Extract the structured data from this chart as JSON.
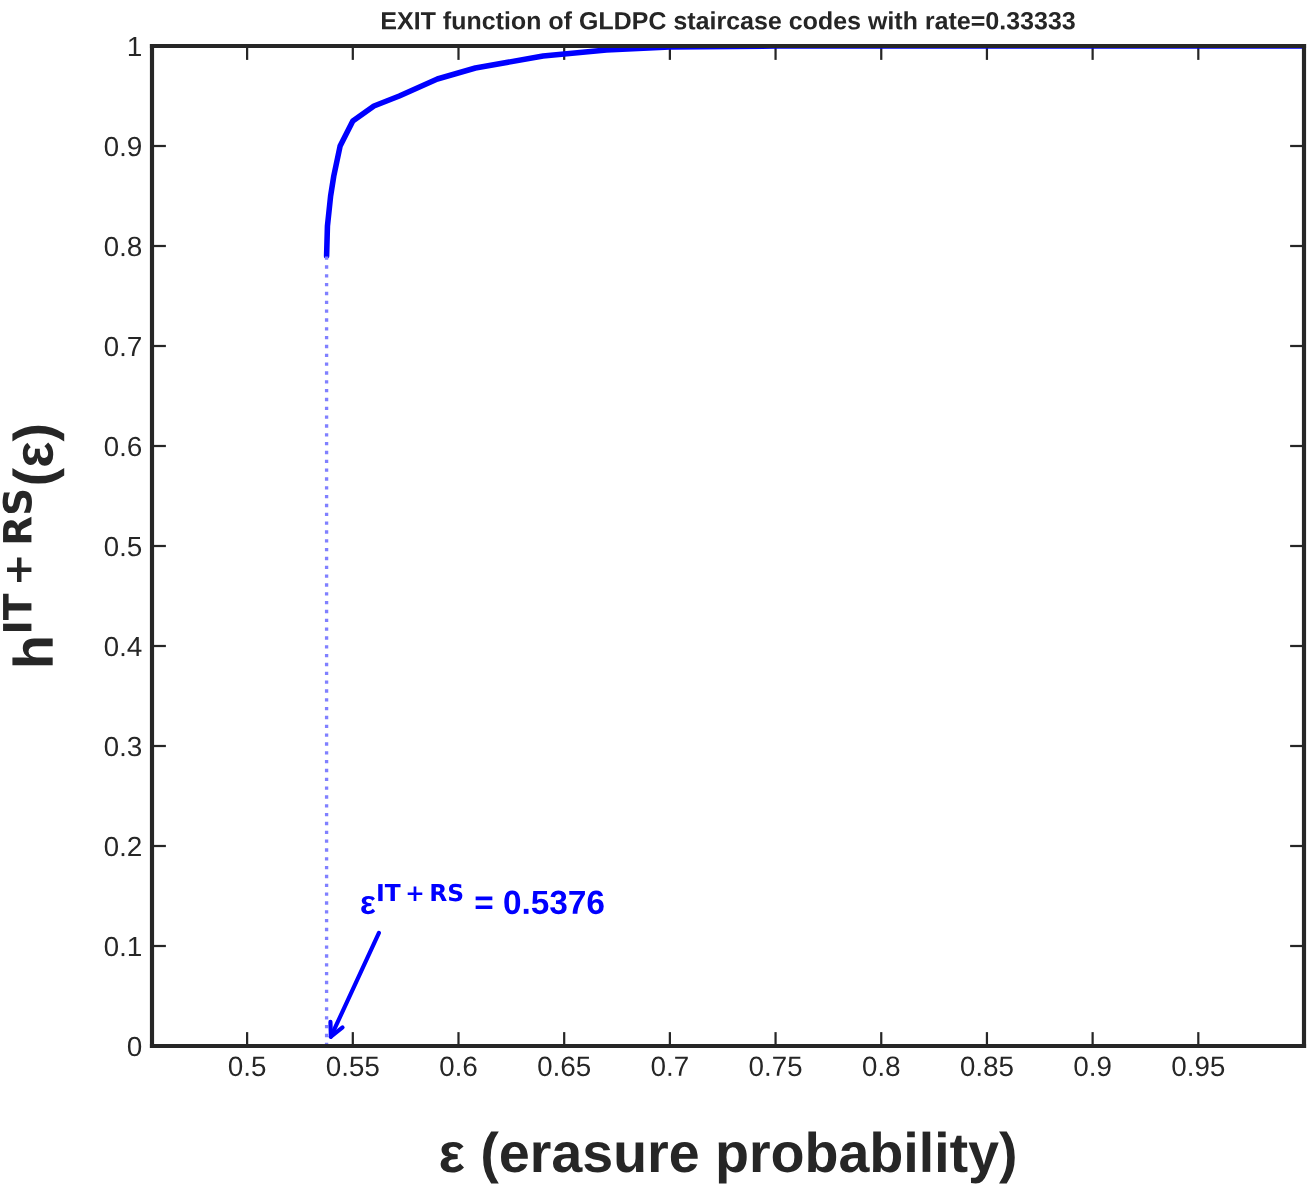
{
  "chart_data": {
    "type": "line",
    "title": "EXIT function of GLDPC staircase codes with rate=0.33333",
    "xlabel": "ε (erasure probability)",
    "ylabel": "h$^{IT+RS}$(ε)",
    "series": [
      {
        "color": "#0000ff",
        "line_style": "solid",
        "x": [
          0.5376,
          0.538,
          0.5395,
          0.541,
          0.544,
          0.55,
          0.56,
          0.572,
          0.59,
          0.608,
          0.64,
          0.67,
          0.7,
          0.75,
          1.0
        ],
        "values": [
          0.79,
          0.82,
          0.85,
          0.87,
          0.9,
          0.925,
          0.94,
          0.95,
          0.967,
          0.978,
          0.99,
          0.996,
          0.999,
          1,
          1
        ]
      },
      {
        "color": "#8080ff",
        "line_style": "dotted",
        "x": [
          0.5376,
          0.5376
        ],
        "values": [
          0,
          0.79
        ]
      }
    ],
    "annotations": [
      {
        "text": "ε$^{IT+RS}$ = 0.5376",
        "x": 0.5376,
        "y": 0
      }
    ],
    "xlim": [
      0.455,
      1.0
    ],
    "ylim": [
      0,
      1
    ],
    "xticks": [
      0.5,
      0.55,
      0.6,
      0.65,
      0.7,
      0.75,
      0.8,
      0.85,
      0.9,
      0.95
    ],
    "yticks": [
      0,
      0.1,
      0.2,
      0.3,
      0.4,
      0.5,
      0.6,
      0.7,
      0.8,
      0.9,
      1
    ],
    "grid": false,
    "marker": "none"
  }
}
